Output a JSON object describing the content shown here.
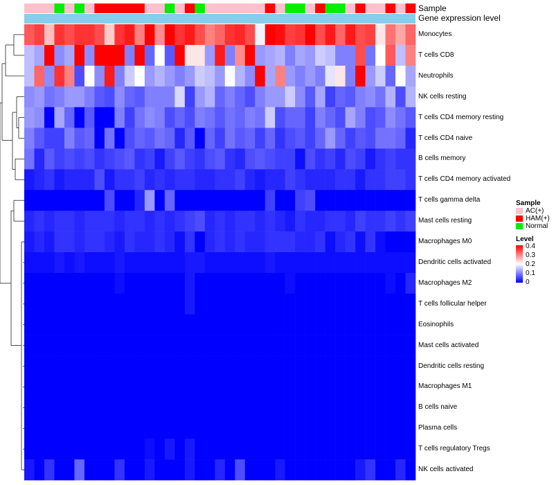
{
  "chart_data": {
    "type": "heatmap",
    "title": "",
    "annotations": [
      "Sample",
      "Gene expression level"
    ],
    "samples": [
      "AC(+)",
      "AC(+)",
      "AC(+)",
      "Normal",
      "AC(+)",
      "Normal",
      "AC(+)",
      "HAM(+)",
      "HAM(+)",
      "HAM(+)",
      "HAM(+)",
      "HAM(+)",
      "AC(+)",
      "AC(+)",
      "Normal",
      "AC(+)",
      "HAM(+)",
      "Normal",
      "AC(+)",
      "AC(+)",
      "AC(+)",
      "AC(+)",
      "AC(+)",
      "AC(+)",
      "HAM(+)",
      "AC(+)",
      "Normal",
      "Normal",
      "AC(+)",
      "HAM(+)",
      "Normal",
      "Normal",
      "AC(+)",
      "HAM(+)",
      "AC(+)",
      "AC(+)",
      "HAM(+)",
      "AC(+)",
      "HAM(+)"
    ],
    "rows": [
      "Monocytes",
      "T cells CD8",
      "Neutrophils",
      "NK cells resting",
      "T cells CD4 memory resting",
      "T cells CD4 naive",
      "B cells memory",
      "T cells CD4 memory activated",
      "T cells gamma delta",
      "Mast cells resting",
      "Macrophages M0",
      "Dendritic cells activated",
      "Macrophages M2",
      "T cells follicular helper",
      "Eosinophils",
      "Mast cells activated",
      "Dendritic cells resting",
      "Macrophages M1",
      "B cells naive",
      "Plasma cells",
      "T cells regulatory  Tregs",
      "NK cells activated"
    ],
    "values": [
      [
        0.33,
        0.35,
        0.25,
        0.36,
        0.34,
        0.36,
        0.36,
        0.34,
        0.24,
        0.36,
        0.38,
        0.3,
        0.4,
        0.29,
        0.4,
        0.36,
        0.38,
        0.34,
        0.3,
        0.32,
        0.36,
        0.37,
        0.34,
        0.19,
        0.4,
        0.39,
        0.35,
        0.36,
        0.4,
        0.34,
        0.38,
        0.32,
        0.38,
        0.34,
        0.35,
        0.22,
        0.31,
        0.27,
        0.32
      ],
      [
        0.15,
        0.13,
        0.4,
        0.11,
        0.13,
        0.4,
        0.11,
        0.4,
        0.4,
        0.4,
        0.1,
        0.4,
        0.08,
        0.2,
        0.07,
        0.4,
        0.22,
        0.22,
        0.12,
        0.38,
        0.1,
        0.29,
        0.4,
        0.12,
        0.13,
        0.14,
        0.1,
        0.13,
        0.12,
        0.16,
        0.15,
        0.1,
        0.1,
        0.34,
        0.09,
        0.2,
        0.33,
        0.15,
        0.3
      ],
      [
        0.15,
        0.32,
        0.11,
        0.36,
        0.3,
        0.06,
        0.2,
        0.11,
        0.38,
        0.1,
        0.16,
        0.2,
        0.12,
        0.14,
        0.12,
        0.1,
        0.12,
        0.16,
        0.15,
        0.12,
        0.2,
        0.14,
        0.11,
        0.4,
        0.13,
        0.3,
        0.12,
        0.1,
        0.12,
        0.1,
        0.18,
        0.22,
        0.1,
        0.4,
        0.12,
        0.16,
        0.08,
        0.2,
        0.13
      ],
      [
        0.11,
        0.12,
        0.09,
        0.1,
        0.12,
        0.12,
        0.1,
        0.07,
        0.06,
        0.11,
        0.08,
        0.07,
        0.1,
        0.1,
        0.1,
        0.17,
        0.05,
        0.12,
        0.14,
        0.08,
        0.1,
        0.08,
        0.06,
        0.1,
        0.12,
        0.12,
        0.16,
        0.11,
        0.07,
        0.13,
        0.05,
        0.08,
        0.07,
        0.1,
        0.11,
        0.09,
        0.14,
        0.06,
        0.14
      ],
      [
        0.12,
        0.11,
        0.0,
        0.13,
        0.08,
        0.0,
        0.07,
        0.0,
        0.0,
        0.1,
        0.05,
        0.09,
        0.11,
        0.1,
        0.06,
        0.08,
        0.06,
        0.1,
        0.09,
        0.07,
        0.09,
        0.08,
        0.1,
        0.09,
        0.16,
        0.06,
        0.08,
        0.08,
        0.05,
        0.1,
        0.08,
        0.06,
        0.13,
        0.1,
        0.06,
        0.07,
        0.11,
        0.09,
        0.07
      ],
      [
        0.1,
        0.07,
        0.05,
        0.05,
        0.1,
        0.07,
        0.08,
        0.0,
        0.09,
        0.0,
        0.06,
        0.08,
        0.07,
        0.09,
        0.08,
        0.03,
        0.07,
        0.0,
        0.08,
        0.05,
        0.09,
        0.07,
        0.08,
        0.05,
        0.08,
        0.04,
        0.06,
        0.07,
        0.05,
        0.08,
        0.12,
        0.08,
        0.05,
        0.07,
        0.06,
        0.09,
        0.09,
        0.08,
        0.03
      ],
      [
        0.09,
        0.03,
        0.07,
        0.05,
        0.06,
        0.05,
        0.06,
        0.04,
        0.05,
        0.06,
        0.07,
        0.04,
        0.05,
        0.02,
        0.05,
        0.07,
        0.05,
        0.04,
        0.06,
        0.07,
        0.04,
        0.03,
        0.06,
        0.07,
        0.06,
        0.05,
        0.05,
        0.01,
        0.06,
        0.04,
        0.05,
        0.03,
        0.06,
        0.05,
        0.02,
        0.04,
        0.05,
        0.04,
        0.04
      ],
      [
        0.02,
        0.03,
        0.04,
        0.02,
        0.03,
        0.03,
        0.03,
        0.06,
        0.02,
        0.04,
        0.04,
        0.05,
        0.03,
        0.04,
        0.03,
        0.04,
        0.04,
        0.03,
        0.03,
        0.04,
        0.04,
        0.05,
        0.03,
        0.02,
        0.03,
        0.03,
        0.05,
        0.04,
        0.03,
        0.03,
        0.03,
        0.04,
        0.04,
        0.02,
        0.04,
        0.04,
        0.05,
        0.05,
        0.04
      ],
      [
        0.0,
        0.0,
        0.0,
        0.0,
        0.0,
        0.0,
        0.0,
        0.0,
        0.06,
        0.0,
        0.0,
        0.03,
        0.12,
        0.0,
        0.08,
        0.0,
        0.0,
        0.0,
        0.0,
        0.0,
        0.0,
        0.0,
        0.0,
        0.0,
        0.05,
        0.0,
        0.0,
        0.05,
        0.06,
        0.0,
        0.0,
        0.0,
        0.0,
        0.0,
        0.0,
        0.0,
        0.0,
        0.0,
        0.0
      ],
      [
        0.03,
        0.04,
        0.03,
        0.04,
        0.04,
        0.03,
        0.04,
        0.04,
        0.04,
        0.03,
        0.04,
        0.04,
        0.03,
        0.04,
        0.03,
        0.04,
        0.05,
        0.06,
        0.03,
        0.04,
        0.03,
        0.04,
        0.04,
        0.03,
        0.04,
        0.03,
        0.02,
        0.04,
        0.03,
        0.03,
        0.04,
        0.04,
        0.03,
        0.05,
        0.04,
        0.04,
        0.05,
        0.04,
        0.05
      ],
      [
        0.02,
        0.03,
        0.02,
        0.04,
        0.04,
        0.03,
        0.04,
        0.04,
        0.03,
        0.02,
        0.04,
        0.03,
        0.03,
        0.04,
        0.03,
        0.01,
        0.04,
        0.0,
        0.03,
        0.04,
        0.03,
        0.04,
        0.03,
        0.03,
        0.04,
        0.04,
        0.04,
        0.03,
        0.03,
        0.04,
        0.01,
        0.03,
        0.04,
        0.01,
        0.04,
        0.01,
        0.0,
        0.0,
        0.0
      ],
      [
        0.01,
        0.01,
        0.01,
        0.02,
        0.01,
        0.02,
        0.01,
        0.01,
        0.01,
        0.02,
        0.01,
        0.01,
        0.01,
        0.01,
        0.01,
        0.01,
        0.02,
        0.02,
        0.01,
        0.01,
        0.01,
        0.01,
        0.01,
        0.01,
        0.02,
        0.01,
        0.01,
        0.01,
        0.01,
        0.01,
        0.01,
        0.01,
        0.01,
        0.01,
        0.01,
        0.01,
        0.01,
        0.01,
        0.01
      ],
      [
        0.0,
        0.0,
        0.0,
        0.0,
        0.0,
        0.0,
        0.0,
        0.0,
        0.0,
        0.01,
        0.0,
        0.0,
        0.0,
        0.0,
        0.0,
        0.0,
        0.02,
        0.0,
        0.0,
        0.0,
        0.0,
        0.0,
        0.0,
        0.0,
        0.0,
        0.0,
        0.01,
        0.0,
        0.0,
        0.0,
        0.0,
        0.0,
        0.0,
        0.0,
        0.0,
        0.0,
        0.01,
        0.0,
        0.03
      ],
      [
        0.0,
        0.0,
        0.0,
        0.0,
        0.0,
        0.0,
        0.0,
        0.0,
        0.0,
        0.0,
        0.0,
        0.0,
        0.0,
        0.0,
        0.0,
        0.0,
        0.02,
        0.0,
        0.0,
        0.0,
        0.0,
        0.0,
        0.0,
        0.0,
        0.0,
        0.0,
        0.0,
        0.0,
        0.0,
        0.0,
        0.0,
        0.0,
        0.0,
        0.0,
        0.0,
        0.0,
        0.0,
        0.0,
        0.0
      ],
      [
        0.0,
        0.0,
        0.0,
        0.0,
        0.0,
        0.0,
        0.0,
        0.0,
        0.0,
        0.0,
        0.0,
        0.0,
        0.0,
        0.0,
        0.0,
        0.0,
        0.0,
        0.0,
        0.0,
        0.0,
        0.0,
        0.0,
        0.0,
        0.0,
        0.0,
        0.0,
        0.0,
        0.0,
        0.0,
        0.0,
        0.0,
        0.0,
        0.0,
        0.0,
        0.0,
        0.0,
        0.0,
        0.0,
        0.0
      ],
      [
        0.0,
        0.0,
        0.0,
        0.0,
        0.0,
        0.0,
        0.0,
        0.0,
        0.0,
        0.0,
        0.0,
        0.0,
        0.0,
        0.0,
        0.0,
        0.0,
        0.0,
        0.0,
        0.0,
        0.0,
        0.0,
        0.0,
        0.0,
        0.0,
        0.0,
        0.0,
        0.0,
        0.0,
        0.0,
        0.0,
        0.0,
        0.0,
        0.0,
        0.0,
        0.0,
        0.0,
        0.0,
        0.0,
        0.0
      ],
      [
        0.0,
        0.0,
        0.0,
        0.0,
        0.0,
        0.0,
        0.0,
        0.0,
        0.0,
        0.0,
        0.0,
        0.0,
        0.0,
        0.0,
        0.0,
        0.0,
        0.0,
        0.0,
        0.0,
        0.0,
        0.0,
        0.0,
        0.0,
        0.0,
        0.0,
        0.0,
        0.0,
        0.0,
        0.0,
        0.0,
        0.0,
        0.0,
        0.0,
        0.0,
        0.0,
        0.0,
        0.0,
        0.0,
        0.0
      ],
      [
        0.0,
        0.0,
        0.0,
        0.0,
        0.0,
        0.0,
        0.0,
        0.0,
        0.0,
        0.0,
        0.0,
        0.0,
        0.0,
        0.0,
        0.0,
        0.0,
        0.0,
        0.0,
        0.0,
        0.0,
        0.0,
        0.0,
        0.0,
        0.0,
        0.0,
        0.0,
        0.0,
        0.0,
        0.0,
        0.0,
        0.0,
        0.0,
        0.0,
        0.0,
        0.0,
        0.0,
        0.0,
        0.0,
        0.0
      ],
      [
        0.0,
        0.0,
        0.0,
        0.0,
        0.0,
        0.0,
        0.0,
        0.0,
        0.0,
        0.0,
        0.0,
        0.0,
        0.0,
        0.0,
        0.0,
        0.0,
        0.0,
        0.0,
        0.0,
        0.0,
        0.0,
        0.0,
        0.0,
        0.0,
        0.0,
        0.0,
        0.0,
        0.0,
        0.0,
        0.0,
        0.0,
        0.0,
        0.0,
        0.0,
        0.0,
        0.0,
        0.0,
        0.0,
        0.0
      ],
      [
        0.0,
        0.0,
        0.0,
        0.0,
        0.0,
        0.0,
        0.0,
        0.0,
        0.0,
        0.0,
        0.0,
        0.0,
        0.0,
        0.0,
        0.0,
        0.0,
        0.0,
        0.0,
        0.0,
        0.0,
        0.0,
        0.0,
        0.0,
        0.0,
        0.0,
        0.0,
        0.0,
        0.0,
        0.0,
        0.0,
        0.0,
        0.0,
        0.0,
        0.0,
        0.0,
        0.0,
        0.0,
        0.0,
        0.0
      ],
      [
        0.0,
        0.0,
        0.0,
        0.0,
        0.0,
        0.0,
        0.0,
        0.0,
        0.0,
        0.0,
        0.0,
        0.0,
        0.01,
        0.0,
        0.02,
        0.0,
        0.02,
        0.0,
        0.0,
        0.0,
        0.0,
        0.0,
        0.0,
        0.0,
        0.0,
        0.0,
        0.0,
        0.0,
        0.0,
        0.0,
        0.0,
        0.0,
        0.0,
        0.0,
        0.0,
        0.0,
        0.0,
        0.0,
        0.0
      ],
      [
        0.02,
        0.0,
        0.04,
        0.0,
        0.0,
        0.08,
        0.0,
        0.0,
        0.0,
        0.04,
        0.0,
        0.0,
        0.02,
        0.0,
        0.0,
        0.0,
        0.02,
        0.0,
        0.0,
        0.03,
        0.0,
        0.06,
        0.0,
        0.0,
        0.0,
        0.02,
        0.0,
        0.0,
        0.0,
        0.0,
        0.0,
        0.0,
        0.0,
        0.02,
        0.04,
        0.0,
        0.0,
        0.03,
        0.0
      ]
    ],
    "range": [
      0,
      0.4
    ],
    "legend_sample": {
      "title": "Sample",
      "items": [
        {
          "label": "AC(+)",
          "color": "#ffc0cb"
        },
        {
          "label": "HAM(+)",
          "color": "#ff0000"
        },
        {
          "label": "Normal",
          "color": "#00ee00"
        }
      ]
    },
    "legend_level": {
      "title": "Level",
      "ticks": [
        "0.4",
        "0.3",
        "0.2",
        "0.1",
        "0"
      ],
      "colors": {
        "low": "#0000ff",
        "mid": "#ffffff",
        "high": "#ff0000"
      }
    },
    "gene_expression_color": "#87ceeb"
  }
}
